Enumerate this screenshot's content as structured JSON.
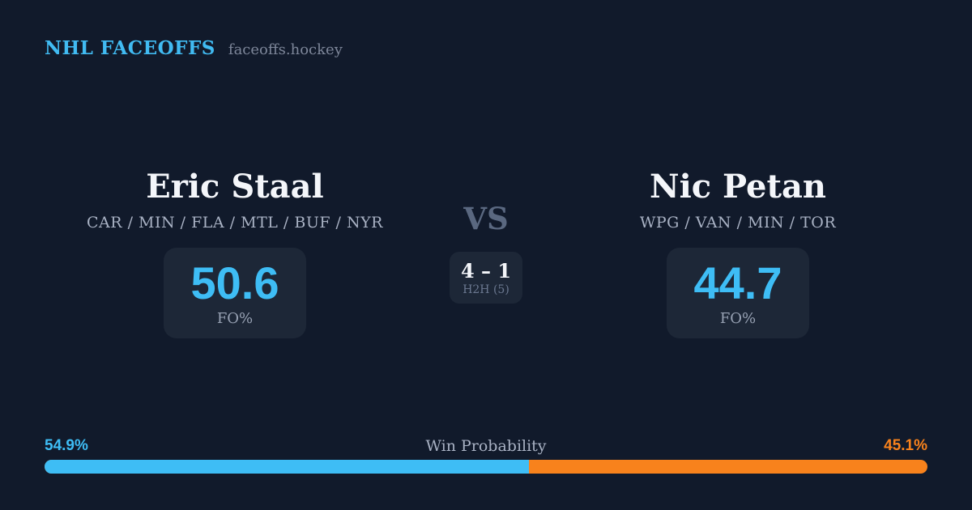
{
  "header": {
    "brand": "NHL FACEOFFS",
    "domain": "faceoffs.hockey"
  },
  "matchup": {
    "vs_label": "VS",
    "h2h": {
      "score": "4 – 1",
      "label": "H2H (5)"
    },
    "players": [
      {
        "name": "Eric Staal",
        "teams": "CAR / MIN / FLA / MTL / BUF / NYR",
        "stat_value": "50.6",
        "stat_label": "FO%"
      },
      {
        "name": "Nic Petan",
        "teams": "WPG / VAN / MIN / TOR",
        "stat_value": "44.7",
        "stat_label": "FO%"
      }
    ]
  },
  "win_probability": {
    "title": "Win Probability",
    "left_label": "54.9%",
    "right_label": "45.1%",
    "left_value": 54.9,
    "right_value": 45.1
  },
  "colors": {
    "background": "#111a2b",
    "card": "#1d2737",
    "accent_blue": "#3ebdf5",
    "accent_orange": "#f8821c",
    "text_primary": "#f4f6fa",
    "text_muted": "#a9b2c4"
  }
}
